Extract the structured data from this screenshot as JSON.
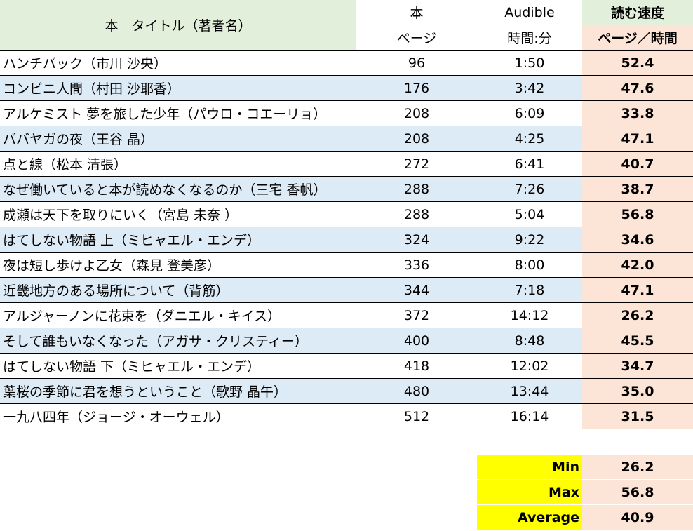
{
  "header": {
    "title": "本　タイトル（著者名）",
    "book": "本",
    "audible": "Audible",
    "speed": "読む速度",
    "pages": "ページ",
    "time": "時間:分",
    "speed_unit": "ページ／時間"
  },
  "table": {
    "rows": [
      [
        "ハンチバック（市川 沙央）",
        96,
        "1:50",
        "52.4"
      ],
      [
        "コンビニ人間（村田 沙耶香）",
        176,
        "3:42",
        "47.6"
      ],
      [
        "アルケミスト 夢を旅した少年（パウロ・コエーリョ）",
        208,
        "6:09",
        "33.8"
      ],
      [
        "ババヤガの夜（王谷 晶）",
        208,
        "4:25",
        "47.1"
      ],
      [
        "点と線（松本 清張）",
        272,
        "6:41",
        "40.7"
      ],
      [
        "なぜ働いていると本が読めなくなるのか（三宅 香帆）",
        288,
        "7:26",
        "38.7"
      ],
      [
        "成瀬は天下を取りにいく（宮島 未奈 ）",
        288,
        "5:04",
        "56.8"
      ],
      [
        "はてしない物語 上（ミヒャエル・エンデ）",
        324,
        "9:22",
        "34.6"
      ],
      [
        "夜は短し歩けよ乙女（森見 登美彦）",
        336,
        "8:00",
        "42.0"
      ],
      [
        "近畿地方のある場所について（背筋）",
        344,
        "7:18",
        "47.1"
      ],
      [
        "アルジャーノンに花束を（ダニエル・キイス）",
        372,
        "14:12",
        "26.2"
      ],
      [
        "そして誰もいなくなった（アガサ・クリスティー）",
        400,
        "8:48",
        "45.5"
      ],
      [
        "はてしない物語 下（ミヒャエル・エンデ）",
        418,
        "12:02",
        "34.7"
      ],
      [
        "葉桜の季節に君を想うということ（歌野 晶午）",
        480,
        "13:44",
        "35.0"
      ],
      [
        "一九八四年（ジョージ・オーウェル）",
        512,
        "16:14",
        "31.5"
      ]
    ]
  },
  "summary": {
    "rows": [
      [
        "Min",
        "26.2"
      ],
      [
        "Max",
        "56.8"
      ],
      [
        "Average",
        "40.9"
      ]
    ]
  }
}
